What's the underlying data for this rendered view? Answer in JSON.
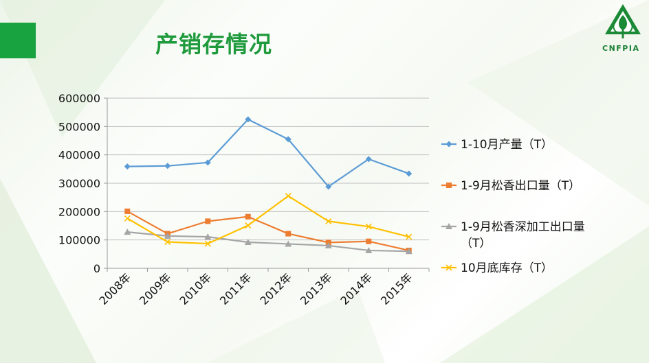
{
  "slide": {
    "title": "产销存情况",
    "logo_text": "CNFPIA",
    "accent_color": "#18a340",
    "title_color": "#1f9a3c"
  },
  "chart_data": {
    "type": "line",
    "title": "",
    "xlabel": "",
    "ylabel": "",
    "categories": [
      "2008年",
      "2009年",
      "2010年",
      "2011年",
      "2012年",
      "2013年",
      "2014年",
      "2015年"
    ],
    "ylim": [
      0,
      600000
    ],
    "yticks": [
      "600000",
      "500000",
      "400000",
      "300000",
      "200000",
      "100000",
      "0"
    ],
    "grid": true,
    "legend_position": "right",
    "series": [
      {
        "name": "1-10月产量（T）",
        "color": "#5b9bd5",
        "marker": "diamond",
        "values": [
          359000,
          361000,
          373000,
          525000,
          455000,
          288000,
          385000,
          334000
        ]
      },
      {
        "name": "1-9月松香出口量（T）",
        "color": "#ed7d31",
        "marker": "square",
        "values": [
          201000,
          122000,
          166000,
          182000,
          122000,
          91000,
          95000,
          63000
        ]
      },
      {
        "name": "1-9月松香深加工出口量（T）",
        "color": "#a5a5a5",
        "marker": "triangle",
        "values": [
          128000,
          114000,
          111000,
          92000,
          86000,
          80000,
          63000,
          60000
        ]
      },
      {
        "name": "10月底库存（T）",
        "color": "#ffc000",
        "marker": "x",
        "values": [
          176000,
          93000,
          87000,
          151000,
          255000,
          166000,
          147000,
          111000
        ]
      }
    ]
  }
}
